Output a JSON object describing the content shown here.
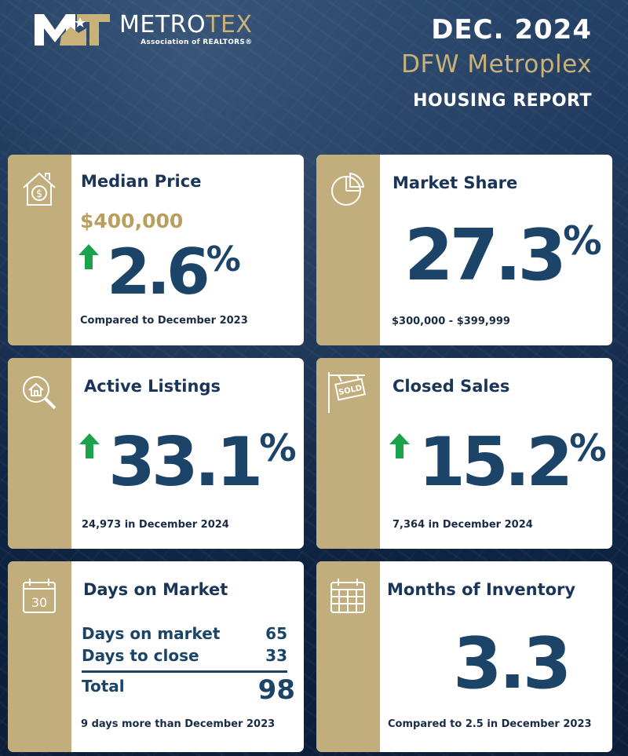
{
  "header": {
    "logo": {
      "name_part1": "METRO",
      "name_part2": "TEX",
      "subtitle": "Association of REALTORS®"
    },
    "date": "DEC. 2024",
    "region": "DFW Metroplex",
    "report": "HOUSING REPORT"
  },
  "colors": {
    "navy": "#1b4468",
    "gold": "#c2ae7d",
    "green": "#1aa34a",
    "background": "#0e2340"
  },
  "cards": {
    "median_price": {
      "icon": "house-dollar-icon",
      "title": "Median Price",
      "price": "$400,000",
      "trend": "up",
      "value": "2.6",
      "unit": "%",
      "note": "Compared to December 2023"
    },
    "market_share": {
      "icon": "pie-chart-icon",
      "title": "Market Share",
      "value": "27.3",
      "unit": "%",
      "note": "$300,000 - $399,999"
    },
    "active_listings": {
      "icon": "house-search-icon",
      "title": "Active Listings",
      "trend": "up",
      "value": "33.1",
      "unit": "%",
      "note": "24,973 in December 2024"
    },
    "closed_sales": {
      "icon": "sold-sign-icon",
      "title": "Closed Sales",
      "trend": "up",
      "value": "15.2",
      "unit": "%",
      "note": "7,364 in December 2024"
    },
    "days_on_market": {
      "icon": "calendar-30-icon",
      "icon_text": "30",
      "title": "Days on Market",
      "rows": [
        {
          "label": "Days on market",
          "value": "65"
        },
        {
          "label": "Days to close",
          "value": "33"
        }
      ],
      "total_label": "Total",
      "total_value": "98",
      "note": "9 days more than December 2023"
    },
    "months_inventory": {
      "icon": "calendar-grid-icon",
      "title": "Months of Inventory",
      "value": "3.3",
      "note": "Compared to 2.5 in December 2023"
    }
  }
}
